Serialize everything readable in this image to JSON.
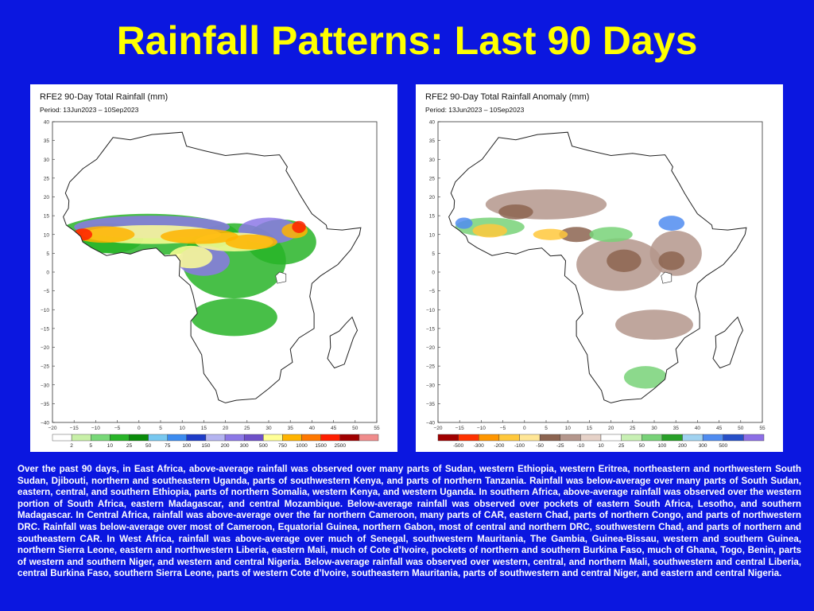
{
  "title": "Rainfall Patterns: Last 90 Days",
  "maps": [
    {
      "title": "RFE2 90-Day Total Rainfall (mm)",
      "period": "Period: 13Jun2023 – 10Sep2023",
      "legend_labels": [
        "2",
        "5",
        "10",
        "25",
        "50",
        "75",
        "100",
        "150",
        "200",
        "300",
        "500",
        "750",
        "1000",
        "1500",
        "2500"
      ],
      "legend_colors": [
        "#ffffff",
        "#c8f0a8",
        "#78d878",
        "#28b428",
        "#0a8c0a",
        "#78c8f0",
        "#3c8cf0",
        "#1e3cc8",
        "#b4b4f0",
        "#8c78e6",
        "#6e50c8",
        "#ffff96",
        "#ffb400",
        "#ff7800",
        "#ff1e00",
        "#a00000",
        "#f08c8c"
      ]
    },
    {
      "title": "RFE2 90-Day Total Rainfall Anomaly (mm)",
      "period": "Period: 13Jun2023 – 10Sep2023",
      "legend_labels": [
        "-500",
        "-300",
        "-200",
        "-100",
        "-50",
        "-25",
        "-10",
        "10",
        "25",
        "50",
        "100",
        "200",
        "300",
        "500"
      ],
      "legend_colors": [
        "#a00000",
        "#ff3200",
        "#ff9600",
        "#ffc83c",
        "#ffe696",
        "#8c6450",
        "#b4968c",
        "#e6d2c8",
        "#ffffff",
        "#c8f0b4",
        "#78d278",
        "#28a028",
        "#a0d2f0",
        "#508cf0",
        "#2850c8",
        "#8c6ee6"
      ]
    }
  ],
  "axes": {
    "lat_labels": [
      "40",
      "35",
      "30",
      "25",
      "20",
      "15",
      "10",
      "5",
      "0",
      "−5",
      "−10",
      "−15",
      "−20",
      "−25",
      "−30",
      "−35",
      "−40"
    ],
    "lon_labels": [
      "−20",
      "−15",
      "−10",
      "−5",
      "0",
      "5",
      "10",
      "15",
      "20",
      "25",
      "30",
      "35",
      "40",
      "45",
      "50",
      "55"
    ]
  },
  "caption": "Over the past 90 days, in East Africa, above-average rainfall was observed over many parts of Sudan, western Ethiopia, western Eritrea, northeastern and northwestern South Sudan, Djibouti, northern and southeastern Uganda, parts of southwestern Kenya, and parts of northern Tanzania. Rainfall was below-average over many parts of South Sudan, eastern, central, and southern Ethiopia, parts of northern Somalia, western Kenya, and western Uganda. In southern Africa, above-average rainfall was observed over the western portion of South Africa, eastern Madagascar, and central Mozambique. Below-average rainfall was observed over pockets of eastern South Africa, Lesotho, and southern Madagascar. In Central Africa, rainfall was above-average over the far northern Cameroon, many parts of CAR, eastern Chad, parts of northern Congo, and parts of northwestern DRC. Rainfall was below-average over most of Cameroon, Equatorial Guinea, northern Gabon, most of central and northern DRC, southwestern Chad, and parts of northern and southeastern CAR. In West Africa, rainfall was above-average over much of Senegal, southwestern Mauritania, The Gambia, Guinea-Bissau, western and southern Guinea, northern Sierra Leone, eastern and northwestern Liberia, eastern Mali, much of Cote d’Ivoire, pockets of northern and southern Burkina Faso, much of Ghana, Togo, Benin, parts of western and southern Niger, and western and central Nigeria. Below-average rainfall was observed over western, central, and northern Mali, southwestern and central Liberia, central Burkina Faso, southern Sierra Leone, parts of western Cote d’Ivoire, southeastern Mauritania, parts of southwestern and central Niger, and eastern and central Nigeria."
}
